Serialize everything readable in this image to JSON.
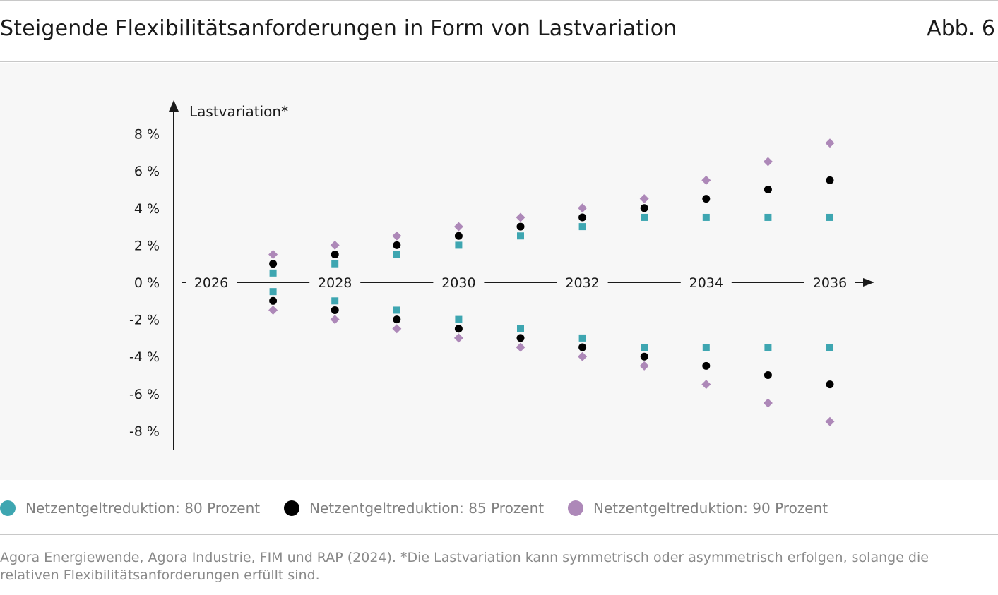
{
  "header": {
    "title": "Steigende Flexibilitätsanforderungen in Form von Lastvariation",
    "figure_label": "Abb. 6"
  },
  "colors": {
    "series_80": "#3ea6b1",
    "series_85": "#000000",
    "series_90": "#ad88b8",
    "background": "#f7f7f7"
  },
  "chart_data": {
    "type": "scatter",
    "title": "Steigende Flexibilitätsanforderungen in Form von Lastvariation",
    "ylabel": "Lastvariation*",
    "xlabel": "",
    "x_ticks": [
      "2026",
      "2028",
      "2030",
      "2032",
      "2034",
      "2036"
    ],
    "y_ticks": [
      "8 %",
      "6 %",
      "4 %",
      "2 %",
      "0 %",
      "-2 %",
      "-4 %",
      "-6 %",
      "-8 %"
    ],
    "y_tick_values": [
      8,
      6,
      4,
      2,
      0,
      -2,
      -4,
      -6,
      -8
    ],
    "xlim": [
      2025.5,
      2036.5
    ],
    "ylim": [
      -9,
      9
    ],
    "grid": false,
    "legend_position": "bottom",
    "years": [
      2027,
      2028,
      2029,
      2030,
      2031,
      2032,
      2033,
      2034,
      2035,
      2036
    ],
    "series": [
      {
        "name": "Netzentgeltreduktion: 80 Prozent",
        "marker": "square",
        "upper": [
          0.5,
          1.0,
          1.5,
          2.0,
          2.5,
          3.0,
          3.5,
          3.5,
          3.5,
          3.5
        ],
        "lower": [
          -0.5,
          -1.0,
          -1.5,
          -2.0,
          -2.5,
          -3.0,
          -3.5,
          -3.5,
          -3.5,
          -3.5
        ]
      },
      {
        "name": "Netzentgeltreduktion: 85 Prozent",
        "marker": "circle",
        "upper": [
          1.0,
          1.5,
          2.0,
          2.5,
          3.0,
          3.5,
          4.0,
          4.5,
          5.0,
          5.5
        ],
        "lower": [
          -1.0,
          -1.5,
          -2.0,
          -2.5,
          -3.0,
          -3.5,
          -4.0,
          -4.5,
          -5.0,
          -5.5
        ]
      },
      {
        "name": "Netzentgeltreduktion: 90 Prozent",
        "marker": "diamond",
        "upper": [
          1.5,
          2.0,
          2.5,
          3.0,
          3.5,
          4.0,
          4.5,
          5.5,
          6.5,
          7.5
        ],
        "lower": [
          -1.5,
          -2.0,
          -2.5,
          -3.0,
          -3.5,
          -4.0,
          -4.5,
          -5.5,
          -6.5,
          -7.5
        ]
      }
    ]
  },
  "legend": [
    {
      "label": "Netzentgeltreduktion: 80 Prozent",
      "color": "#3ea6b1"
    },
    {
      "label": "Netzentgeltreduktion: 85 Prozent",
      "color": "#000000"
    },
    {
      "label": "Netzentgeltreduktion: 90 Prozent",
      "color": "#ad88b8"
    }
  ],
  "source": "Agora Energiewende, Agora Industrie, FIM und RAP (2024). *Die Lastvariation kann symmetrisch oder asymmetrisch erfolgen, solange die relativen Flexibilitätsanforderungen erfüllt sind."
}
